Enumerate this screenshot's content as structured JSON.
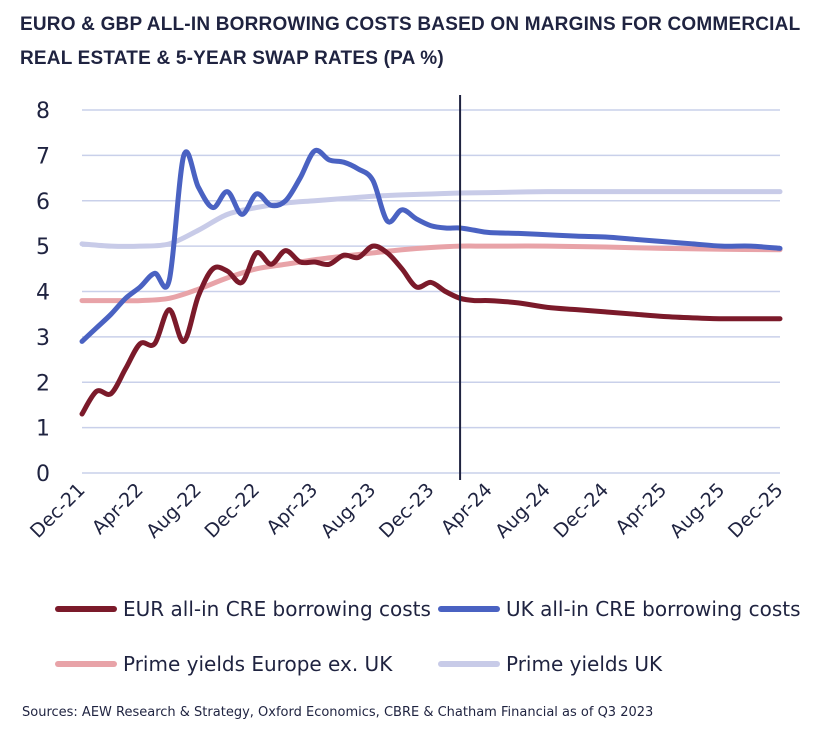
{
  "title": "EURO & GBP ALL-IN BORROWING COSTS BASED ON MARGINS FOR COMMERCIAL REAL ESTATE & 5-YEAR SWAP RATES (PA %)",
  "source": "Sources: AEW Research & Strategy, Oxford Economics, CBRE & Chatham Financial as of Q3 2023",
  "chart_data": {
    "type": "line",
    "title": "EURO & GBP ALL-IN BORROWING COSTS BASED ON MARGINS FOR COMMERCIAL REAL ESTATE & 5-YEAR SWAP RATES (PA %)",
    "xlabel": "",
    "ylabel": "",
    "ylim": [
      0,
      8
    ],
    "yticks": [
      "0",
      "1",
      "2",
      "3",
      "4",
      "5",
      "6",
      "7",
      "8"
    ],
    "xlim": [
      "Dec-21",
      "Dec-25"
    ],
    "x_tick_labels": [
      "Dec-21",
      "Apr-22",
      "Aug-22",
      "Dec-22",
      "Apr-23",
      "Aug-23",
      "Dec-23",
      "Apr-24",
      "Aug-24",
      "Dec-24",
      "Apr-25",
      "Aug-25",
      "Dec-25"
    ],
    "grid": "horizontal",
    "legend_position": "bottom",
    "vertical_marker": "Feb-24",
    "series": [
      {
        "name": "EUR all-in CRE borrowing costs",
        "color": "#7b1a2a",
        "x": [
          "Dec-21",
          "Jan-22",
          "Feb-22",
          "Mar-22",
          "Apr-22",
          "May-22",
          "Jun-22",
          "Jul-22",
          "Aug-22",
          "Sep-22",
          "Oct-22",
          "Nov-22",
          "Dec-22",
          "Jan-23",
          "Feb-23",
          "Mar-23",
          "Apr-23",
          "May-23",
          "Jun-23",
          "Jul-23",
          "Aug-23",
          "Sep-23",
          "Oct-23",
          "Nov-23",
          "Dec-23",
          "Jan-24",
          "Feb-24",
          "Mar-24",
          "Apr-24",
          "Jun-24",
          "Aug-24",
          "Oct-24",
          "Dec-24",
          "Feb-25",
          "Apr-25",
          "Jun-25",
          "Aug-25",
          "Oct-25",
          "Dec-25"
        ],
        "values": [
          1.3,
          1.8,
          1.75,
          2.3,
          2.85,
          2.85,
          3.6,
          2.9,
          3.9,
          4.5,
          4.45,
          4.2,
          4.85,
          4.6,
          4.9,
          4.65,
          4.65,
          4.6,
          4.8,
          4.75,
          5.0,
          4.85,
          4.5,
          4.1,
          4.2,
          4.0,
          3.85,
          3.8,
          3.8,
          3.75,
          3.65,
          3.6,
          3.55,
          3.5,
          3.45,
          3.42,
          3.4,
          3.4,
          3.4
        ]
      },
      {
        "name": "UK all-in CRE borrowing costs",
        "color": "#4a62c2",
        "x": [
          "Dec-21",
          "Jan-22",
          "Feb-22",
          "Mar-22",
          "Apr-22",
          "May-22",
          "Jun-22",
          "Jul-22",
          "Aug-22",
          "Sep-22",
          "Oct-22",
          "Nov-22",
          "Dec-22",
          "Jan-23",
          "Feb-23",
          "Mar-23",
          "Apr-23",
          "May-23",
          "Jun-23",
          "Jul-23",
          "Aug-23",
          "Sep-23",
          "Oct-23",
          "Nov-23",
          "Dec-23",
          "Jan-24",
          "Feb-24",
          "Mar-24",
          "Apr-24",
          "Jun-24",
          "Aug-24",
          "Oct-24",
          "Dec-24",
          "Feb-25",
          "Apr-25",
          "Jun-25",
          "Aug-25",
          "Oct-25",
          "Dec-25"
        ],
        "values": [
          2.9,
          3.2,
          3.5,
          3.85,
          4.1,
          4.4,
          4.25,
          7.0,
          6.3,
          5.85,
          6.2,
          5.7,
          6.15,
          5.9,
          6.0,
          6.5,
          7.1,
          6.9,
          6.85,
          6.7,
          6.45,
          5.55,
          5.8,
          5.6,
          5.45,
          5.4,
          5.4,
          5.35,
          5.3,
          5.28,
          5.25,
          5.22,
          5.2,
          5.15,
          5.1,
          5.05,
          5.0,
          5.0,
          4.95
        ]
      },
      {
        "name": "Prime yields Europe ex. UK",
        "color": "#e8a3a8",
        "x": [
          "Dec-21",
          "Feb-22",
          "Apr-22",
          "Jun-22",
          "Aug-22",
          "Oct-22",
          "Dec-22",
          "Feb-23",
          "Apr-23",
          "Jun-23",
          "Aug-23",
          "Oct-23",
          "Dec-23",
          "Feb-24",
          "Apr-24",
          "Aug-24",
          "Dec-24",
          "Apr-25",
          "Aug-25",
          "Dec-25"
        ],
        "values": [
          3.8,
          3.8,
          3.8,
          3.85,
          4.05,
          4.3,
          4.5,
          4.6,
          4.7,
          4.78,
          4.85,
          4.92,
          4.97,
          5.0,
          5.0,
          5.0,
          4.98,
          4.95,
          4.93,
          4.92
        ]
      },
      {
        "name": "Prime yields UK",
        "color": "#c8cbe8",
        "x": [
          "Dec-21",
          "Feb-22",
          "Apr-22",
          "Jun-22",
          "Aug-22",
          "Oct-22",
          "Dec-22",
          "Feb-23",
          "Apr-23",
          "Jun-23",
          "Aug-23",
          "Oct-23",
          "Dec-23",
          "Feb-24",
          "Apr-24",
          "Aug-24",
          "Dec-24",
          "Apr-25",
          "Aug-25",
          "Dec-25"
        ],
        "values": [
          5.05,
          5.0,
          5.0,
          5.05,
          5.35,
          5.7,
          5.85,
          5.95,
          6.0,
          6.05,
          6.1,
          6.13,
          6.15,
          6.17,
          6.18,
          6.2,
          6.2,
          6.2,
          6.2,
          6.2
        ]
      }
    ]
  }
}
